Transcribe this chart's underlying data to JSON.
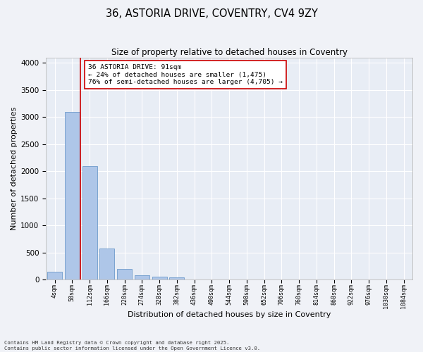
{
  "title_line1": "36, ASTORIA DRIVE, COVENTRY, CV4 9ZY",
  "title_line2": "Size of property relative to detached houses in Coventry",
  "xlabel": "Distribution of detached houses by size in Coventry",
  "ylabel": "Number of detached properties",
  "bar_values": [
    140,
    3100,
    2090,
    575,
    195,
    80,
    55,
    45,
    0,
    0,
    0,
    0,
    0,
    0,
    0,
    0,
    0,
    0,
    0,
    0,
    0
  ],
  "bar_labels": [
    "4sqm",
    "58sqm",
    "112sqm",
    "166sqm",
    "220sqm",
    "274sqm",
    "328sqm",
    "382sqm",
    "436sqm",
    "490sqm",
    "544sqm",
    "598sqm",
    "652sqm",
    "706sqm",
    "760sqm",
    "814sqm",
    "868sqm",
    "922sqm",
    "976sqm",
    "1030sqm",
    "1084sqm"
  ],
  "bar_color": "#aec6e8",
  "bar_edge_color": "#5b8ec4",
  "background_color": "#e8edf5",
  "grid_color": "#ffffff",
  "vline_color": "#cc0000",
  "vline_x": 1.47,
  "annotation_text": "36 ASTORIA DRIVE: 91sqm\n← 24% of detached houses are smaller (1,475)\n76% of semi-detached houses are larger (4,705) →",
  "annotation_box_facecolor": "#ffffff",
  "annotation_box_edgecolor": "#cc0000",
  "ylim": [
    0,
    4100
  ],
  "yticks": [
    0,
    500,
    1000,
    1500,
    2000,
    2500,
    3000,
    3500,
    4000
  ],
  "footer_line1": "Contains HM Land Registry data © Crown copyright and database right 2025.",
  "footer_line2": "Contains public sector information licensed under the Open Government Licence v3.0.",
  "fig_width": 6.0,
  "fig_height": 5.0,
  "dpi": 100
}
